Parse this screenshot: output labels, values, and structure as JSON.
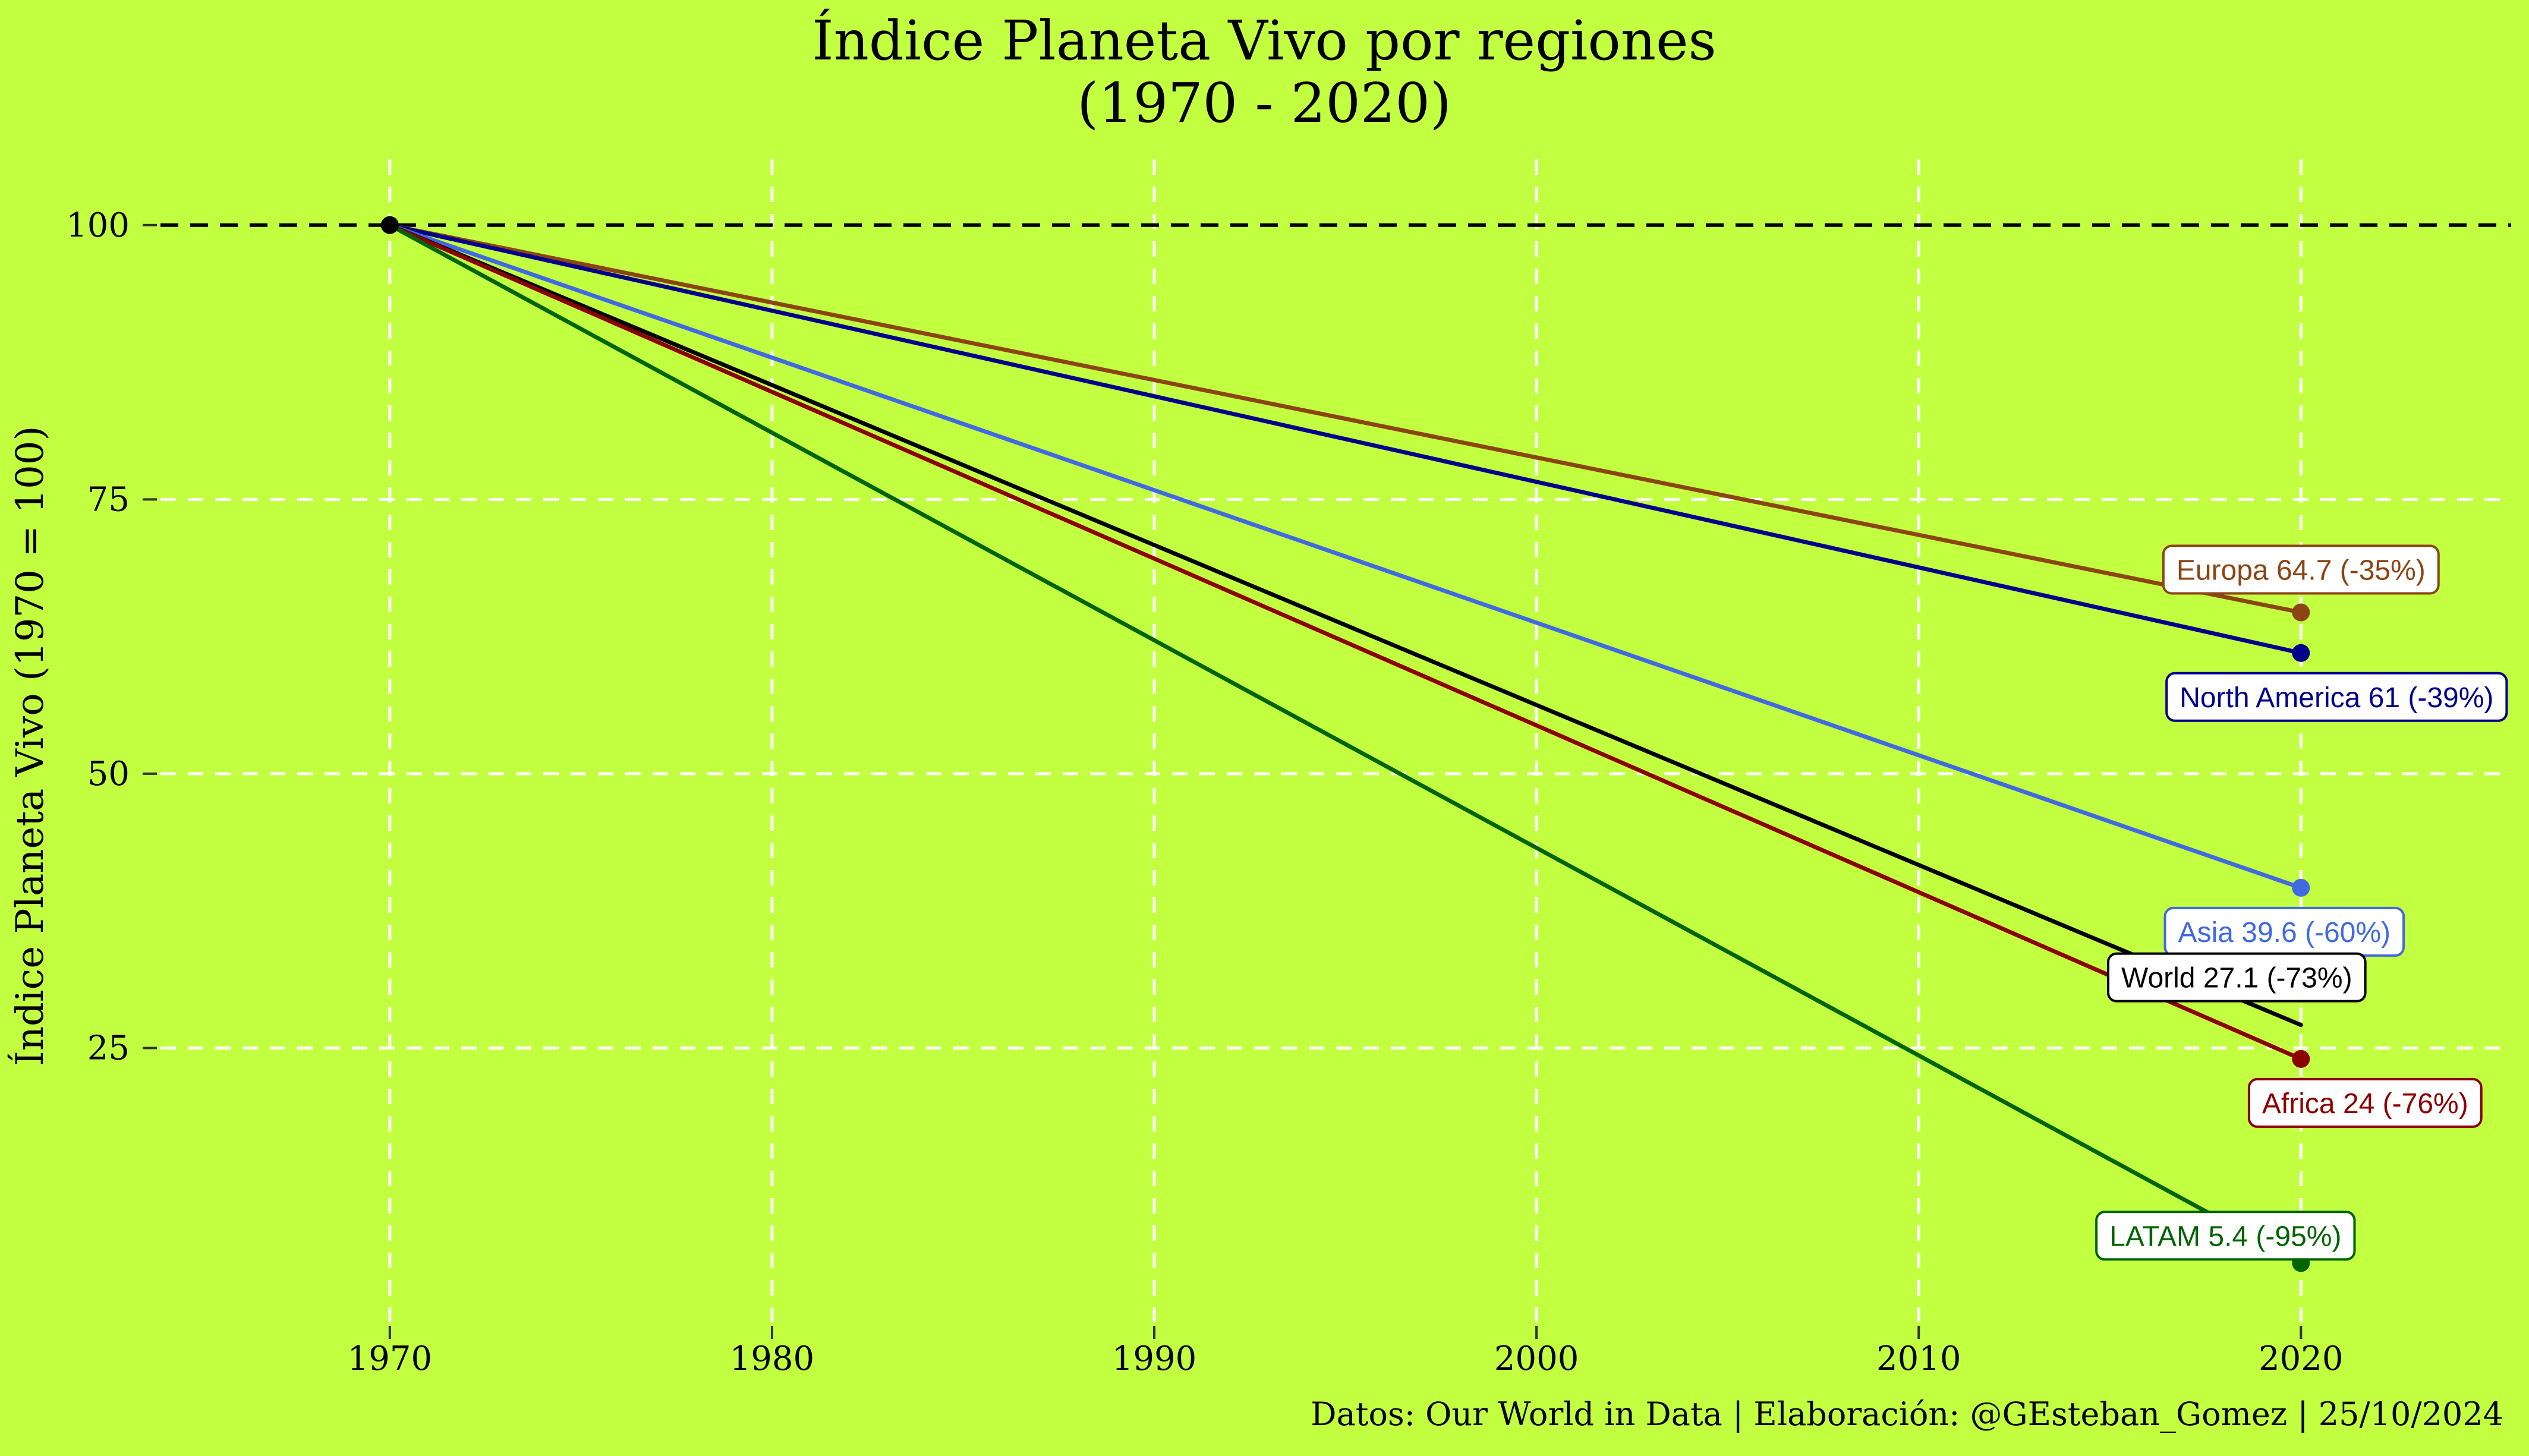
{
  "chart_data": {
    "type": "line",
    "title": "Índice Planeta Vivo por regiones",
    "subtitle": "(1970 - 2020)",
    "xlabel": "",
    "ylabel": "Índice Planeta Vivo (1970 = 100)",
    "x": [
      1970,
      2020
    ],
    "xlim": [
      1964,
      2025.5
    ],
    "ylim": [
      0,
      106
    ],
    "xticks": [
      1970,
      1980,
      1990,
      2000,
      2010,
      2020
    ],
    "yticks": [
      25,
      50,
      75,
      100
    ],
    "xtick_labels": [
      "1970",
      "1980",
      "1990",
      "2000",
      "2010",
      "2020"
    ],
    "ytick_labels": [
      "25",
      "50",
      "75",
      "100"
    ],
    "grid": true,
    "reference_line": 100,
    "series": [
      {
        "name": "Europa",
        "values": [
          100,
          64.7
        ],
        "color": "#8b4513",
        "label": "Europa 64.7 (-35%)",
        "point": true
      },
      {
        "name": "North America",
        "values": [
          100,
          61
        ],
        "color": "#00008b",
        "label": "North America 61 (-39%)",
        "point": true
      },
      {
        "name": "Asia",
        "values": [
          100,
          39.6
        ],
        "color": "#4169e1",
        "label": "Asia 39.6 (-60%)",
        "point": true
      },
      {
        "name": "World",
        "values": [
          100,
          27.1
        ],
        "color": "#000000",
        "label": "World 27.1 (-73%)",
        "point": false
      },
      {
        "name": "Africa",
        "values": [
          100,
          24
        ],
        "color": "#8b0000",
        "label": "Africa 24 (-76%)",
        "point": true
      },
      {
        "name": "LATAM",
        "values": [
          100,
          5.4
        ],
        "color": "#006400",
        "label": "LATAM 5.4 (-95%)",
        "point": true
      }
    ],
    "caption": "Datos: Our World in Data | Elaboración: @GEsteban_Gomez | 25/10/2024",
    "background": "#c3ff41",
    "grid_color": "#ffffff"
  }
}
